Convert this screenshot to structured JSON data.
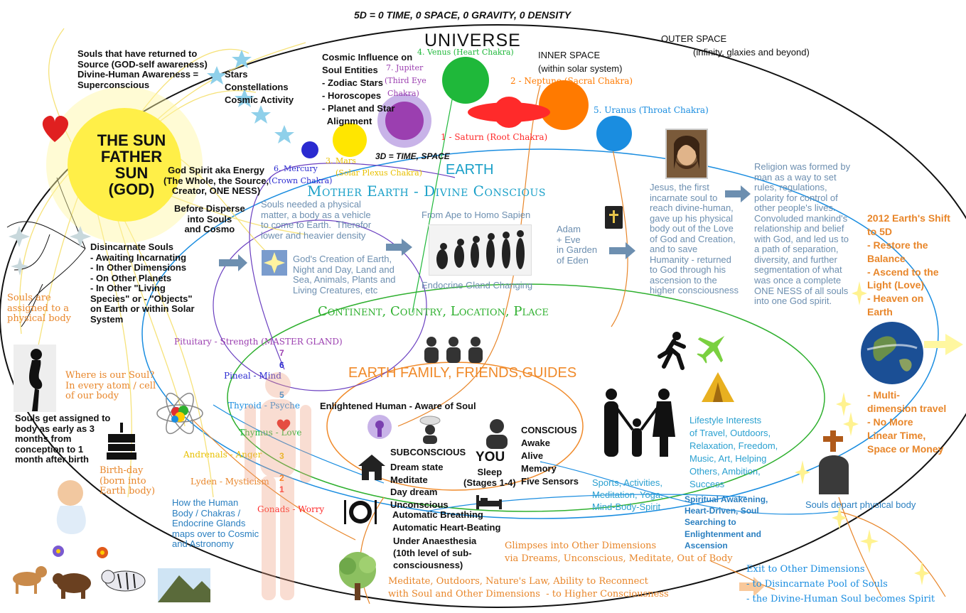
{
  "colors": {
    "sun": "#ffea00",
    "heart": "#e02020",
    "venus": "#1fb83a",
    "jupiter": "#9b3fb0",
    "neptune": "#ff7a00",
    "saturn": "#ff2a2a",
    "uranus": "#1a8de0",
    "mars": "#ffe600",
    "mercury": "#2a2ad0",
    "earth_title": "#1aa0c8",
    "continent": "#2fb02f",
    "family": "#f08a2a",
    "steel": "#6d8fb0",
    "orange": "#e8862a"
  },
  "header": {
    "top_banner": "5D = 0 TIME, 0 SPACE, 0 GRAVITY, 0 DENSITY"
  },
  "universe": {
    "title": "UNIVERSE",
    "outer_space": "OUTER SPACE",
    "outer_space_sub": "(infinity, glaxies and beyond)",
    "inner_space": "INNER SPACE",
    "inner_space_sub": "(within solar system)"
  },
  "souls_returned": "Souls that have returned to\nSource (GOD-self awareness)\nDivine-Human Awareness =\nSuperconscious",
  "stars_text": "Stars\nConstellations\nCosmic Activity",
  "cosmic_influence": "Cosmic Influence on\nSoul Entities\n- Zodiac Stars\n- Horoscopes\n- Planet and Star\n  Alignment",
  "planets": {
    "venus": "4. Venus (Heart Chakra)",
    "jupiter_1": "7. Jupiter",
    "jupiter_2": "(Third Eye",
    "jupiter_3": "Chakra)",
    "neptune": "2 - Neptune (Sacral Chakra)",
    "uranus": "5. Uranus (Throat Chakra)",
    "saturn": "1 - Saturn (Root Chakra)",
    "mars_1": "3. Mars",
    "mars_2": "(Solar Plexus Chakra)",
    "mercury_1": "6. Mercury",
    "mercury_2": "(Crown Chakra)"
  },
  "sun": {
    "line1": "THE SUN",
    "line2": "FATHER",
    "line3": "SUN",
    "line4": "(GOD)"
  },
  "god_spirit": "God Spirit aka Energy\n(The Whole, the Source,\nCreator, ONE NESS)",
  "before_disperse": "Before Disperse\ninto Souls\nand Cosmo",
  "three_d": "3D = TIME, SPACE",
  "earth": {
    "title": "EARTH",
    "subtitle": "Mother Earth - Divine Conscious"
  },
  "souls_needed": "Souls needed a physical\nmatter, a body as a vehicle\nto come to Earth.  Therefor\nlower and heavier density",
  "gods_creation": "God's Creation of Earth,\nNight and Day, Land and\nSea, Animals, Plants and\nLiving Creatures, etc",
  "ape": {
    "top": "From Ape to Homo Sapien",
    "bottom": "Endocrine Gland Changing"
  },
  "adam_eve": "Adam\n+ Eve\nin Garden\nof Eden",
  "jesus": "Jesus, the first\nincarnate soul to\nreach divine-human,\ngave up his physical\nbody out of the Love\nof God and Creation,\nand to save\nHumanity - returned\nto God through his\nascension to the\nhigher consciousness",
  "religion": "Religion was formed by\nman as a way to set\nrules, regulations,\npolarity for control of\nother people's lives.\nConvoluded mankind's\nrelationship and belief\nwith God, and led us to\na path of separation,\ndiversity, and further\nsegmentation of what\nwas once a complete\nONE NESS of all souls\ninto one God spirit.",
  "shift": "2012 Earth's Shift\nto 5D\n- Restore the\nBalance\n- Ascend to the\nLight (Love)\n- Heaven on\nEarth",
  "multi": "- Multi-\ndimension travel\n- No More\nLinear Time,\nSpace or Money",
  "disincarnate": "Disincarnate Souls\n- Awaiting Incarnating\n- In Other Dimensions\n- On Other Planets\n- In Other \"Living\nSpecies\" or - \"Objects\"\non Earth or within Solar\nSystem",
  "assigned": "Souls are\nassigned to a\nphysical body",
  "where_soul": "Where is our Soul?\nIn every atom / cell\nof our body",
  "souls_get_assigned": "Souls get assigned to\nbody as early as 3\nmonths from\nconception to 1\nmonth after birth",
  "birthday": "Birth-day\n(born into\nEarth body)",
  "continent": "Continent, Country, Location, Place",
  "family": "EARTH FAMILY, FRIENDS,GUIDES",
  "glands": {
    "pituitary": "Pituitary - Strength (MASTER GLAND)",
    "pineal": "Pineal - Mind",
    "thyroid": "Thyroid - Psyche",
    "thymus": "Thymus - Love",
    "adrenals": "Andrenals - Anger",
    "lyden": "Lyden - Mysticism",
    "gonads": "Gonads - Worry",
    "n7": "7",
    "n6": "6",
    "n5": "5",
    "n3": "3",
    "n2": "2",
    "n1": "1"
  },
  "how_human": "How the Human\nBody / Chakras /\nEndocrine Glands\nmaps over to Cosmic\nand Astronomy",
  "enlightened": "Enlightened Human - Aware of Soul",
  "you": {
    "label": "YOU",
    "sleep": "Sleep\n(Stages 1-4)"
  },
  "conscious": "CONSCIOUS\nAwake\nAlive\nMemory\nFive Sensors",
  "subconscious_title": "SUBCONSCIOUS",
  "subconscious_list": "Dream state\nMeditate\nDay dream\nUnconscious",
  "auto": "Automatic Breathing\nAutomatic Heart-Beating",
  "anaesthesia": "Under Anaesthesia\n(10th level of sub-\nconsciousness)",
  "glimpses": "Glimpses into Other Dimensions\nvia Dreams, Unconscious, Meditate, Out of Body",
  "meditate_outdoors": "Meditate, Outdoors, Nature's Law, Ability to Reconnect\nwith Soul and Other Dimensions  - to Higher Consciousness",
  "lifestyle": "Lifestyle Interests\nof Travel, Outdoors,\nRelaxation, Freedom,\nMusic, Art, Helping\nOthers, Ambition,\nSuccess",
  "sports": "Sports, Activities,\nMeditation, Yoga,\nMind-Body-Spirit",
  "spiritual": "Spiritual Awakening,\nHeart-Driven, Soul\nSearching to\nEnlightenment and\nAscension",
  "souls_depart": "Souls depart physical body",
  "exit": "Exit to Other Dimensions\n- to Disincarnate Pool of Souls\n- the Divine-Human Soul becomes Spirit"
}
